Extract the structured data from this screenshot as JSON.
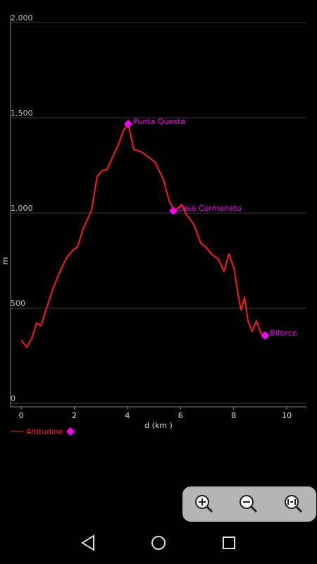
{
  "chart_data": {
    "type": "line",
    "xlabel": "d (km )",
    "ylabel": "m",
    "x": [
      0,
      0.21,
      0.4,
      0.58,
      0.74,
      0.93,
      1.19,
      1.46,
      1.72,
      1.94,
      2.12,
      2.33,
      2.65,
      2.86,
      3.05,
      3.24,
      3.45,
      3.66,
      3.85,
      4.03,
      4.24,
      4.51,
      4.77,
      5.04,
      5.36,
      5.57,
      5.76,
      6.05,
      6.23,
      6.5,
      6.76,
      6.95,
      7.16,
      7.43,
      7.64,
      7.82,
      8.01,
      8.17,
      8.28,
      8.41,
      8.54,
      8.7,
      8.86,
      9.02,
      9.2
    ],
    "series": [
      {
        "name": "Altitudine",
        "color": "#ff1a1a",
        "values": [
          333,
          296,
          341,
          422,
          407,
          489,
          600,
          693,
          767,
          804,
          822,
          915,
          1015,
          1193,
          1222,
          1230,
          1296,
          1359,
          1433,
          1467,
          1333,
          1322,
          1296,
          1267,
          1174,
          1063,
          1011,
          1044,
          989,
          941,
          841,
          822,
          785,
          756,
          693,
          785,
          711,
          570,
          489,
          556,
          433,
          378,
          433,
          370,
          352
        ]
      }
    ],
    "waypoints": {
      "color": "#ff00ff",
      "names": [
        "Punta Questa",
        "case Cormeneto",
        "Biforco"
      ],
      "x": [
        4.03,
        5.73,
        9.18
      ],
      "values": [
        1467,
        1011,
        356
      ]
    },
    "xlim": [
      -0.4,
      10.74
    ],
    "ylim": [
      -18,
      2037
    ],
    "xticks": [
      0,
      2,
      4,
      6,
      8,
      10
    ],
    "yticks": [
      0,
      {
        "value": 500,
        "label": "500"
      },
      {
        "value": 1000,
        "label": "1.000"
      },
      {
        "value": 1500,
        "label": "1.500"
      },
      {
        "value": 2000,
        "label": "2.000"
      }
    ],
    "grid": true
  }
}
